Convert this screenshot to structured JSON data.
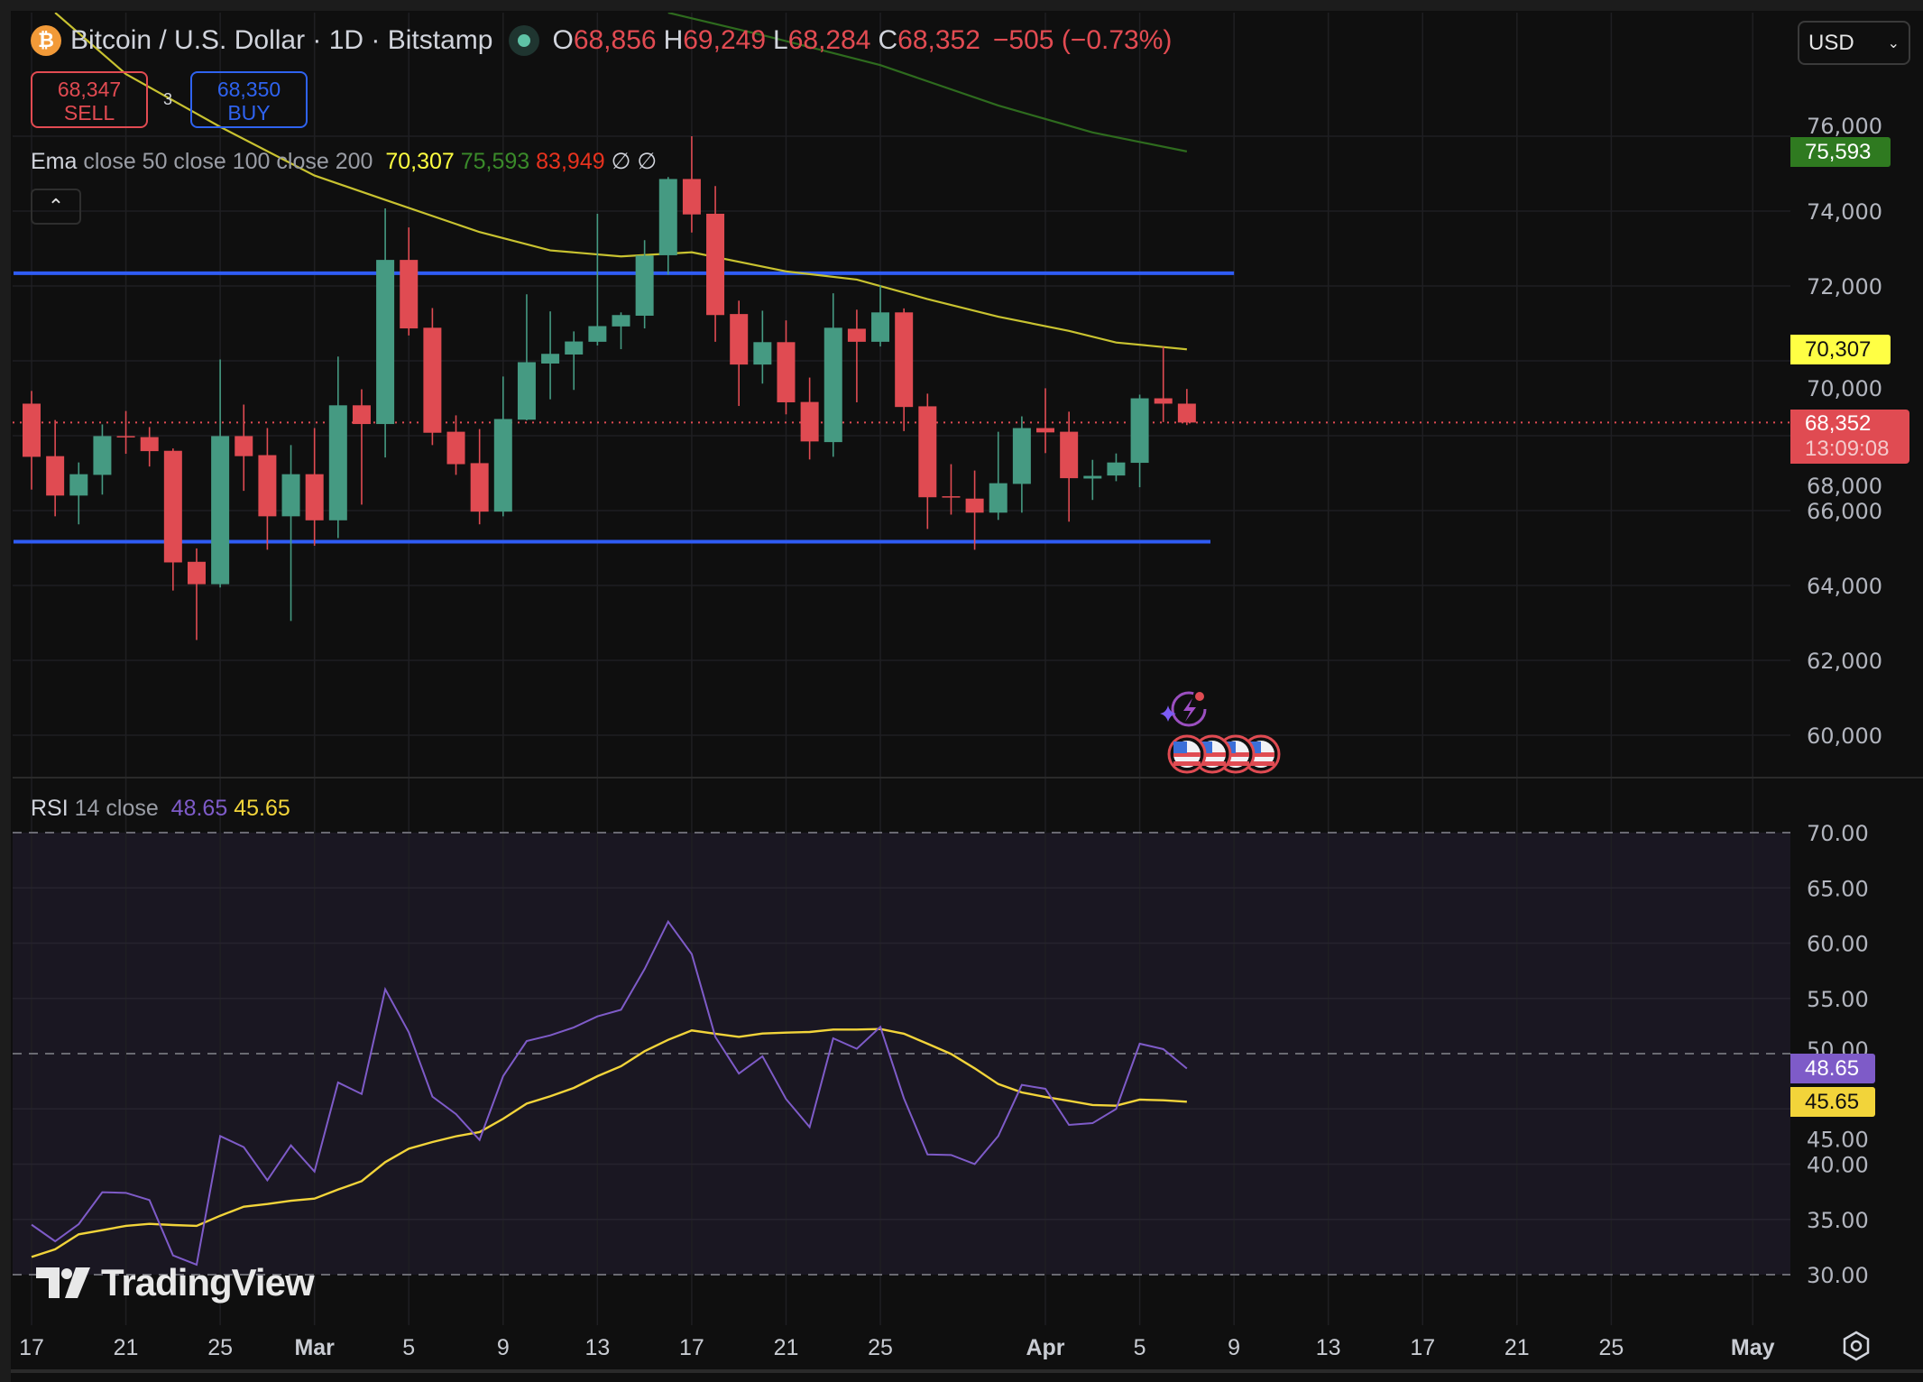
{
  "header": {
    "symbol_icon": "bitcoin-icon",
    "title": "Bitcoin / U.S. Dollar · 1D · Bitstamp",
    "market_status_icon": "market-open-dot-icon",
    "open_label": "O",
    "open": "68,856",
    "high_label": "H",
    "high": "69,249",
    "low_label": "L",
    "low": "68,284",
    "close_label": "C",
    "close": "68,352",
    "change": "−505 (−0.73%)"
  },
  "trade": {
    "sell_price": "68,347",
    "sell_label": "SELL",
    "spread": "3",
    "buy_price": "68,350",
    "buy_label": "BUY"
  },
  "ema_legend": {
    "name": "Ema",
    "params": "close 50 close 100 close 200",
    "v50": "70,307",
    "v100": "75,593",
    "v200": "83,949",
    "na1": "∅",
    "na2": "∅"
  },
  "rsi_legend": {
    "name": "RSI",
    "params": "14 close",
    "rsi": "48.65",
    "ma": "45.65"
  },
  "currency_select": {
    "value": "USD"
  },
  "colors": {
    "up": "#459a82",
    "down": "#e04b52",
    "ema50": "#c8c230",
    "ema100": "#2e6b1e",
    "ema200": "#e8321e",
    "level_lines": "#2f5cf5",
    "rsi": "#7e5bc8",
    "rsi_ma": "#f2d43a",
    "rsi_band": "#1a1722",
    "background": "#0f0f0f"
  },
  "price_tags": {
    "ema100": "75,593",
    "ema50": "70,307",
    "last": "68,352",
    "countdown": "13:09:08",
    "rsi": "48.65",
    "rsi_ma": "45.65"
  },
  "watermark": "TradingView",
  "chart_data": {
    "type": "candlestick",
    "price_axis": {
      "ylim": [
        58500,
        80000
      ],
      "ticks": [
        {
          "value": 76000,
          "label": "76,000"
        },
        {
          "value": 74000,
          "label": "74,000"
        },
        {
          "value": 72000,
          "label": "72,000"
        },
        {
          "value": 70000,
          "label": "70,000"
        },
        {
          "value": 68000,
          "label": "68,000"
        },
        {
          "value": 66000,
          "label": "66,000"
        },
        {
          "value": 64000,
          "label": "64,000"
        },
        {
          "value": 62000,
          "label": "62,000"
        },
        {
          "value": 60000,
          "label": "60,000"
        }
      ]
    },
    "time_axis": {
      "ticks": [
        {
          "date": "Feb 17",
          "label": "17"
        },
        {
          "date": "Feb 21",
          "label": "21"
        },
        {
          "date": "Feb 25",
          "label": "25"
        },
        {
          "date": "Mar 1",
          "label": "Mar"
        },
        {
          "date": "Mar 5",
          "label": "5"
        },
        {
          "date": "Mar 9",
          "label": "9"
        },
        {
          "date": "Mar 13",
          "label": "13"
        },
        {
          "date": "Mar 17",
          "label": "17"
        },
        {
          "date": "Mar 21",
          "label": "21"
        },
        {
          "date": "Mar 25",
          "label": "25"
        },
        {
          "date": "Apr 1",
          "label": "Apr"
        },
        {
          "date": "Apr 5",
          "label": "5"
        },
        {
          "date": "Apr 9",
          "label": "9"
        },
        {
          "date": "Apr 13",
          "label": "13"
        },
        {
          "date": "Apr 17",
          "label": "17"
        },
        {
          "date": "Apr 21",
          "label": "21"
        },
        {
          "date": "Apr 25",
          "label": "25"
        },
        {
          "date": "May 1",
          "label": "May"
        }
      ]
    },
    "candles": [
      {
        "date": "Feb 17",
        "o": 68856,
        "h": 69196,
        "l": 66561,
        "c": 67436
      },
      {
        "date": "Feb 18",
        "o": 67454,
        "h": 68419,
        "l": 65847,
        "c": 66401
      },
      {
        "date": "Feb 19",
        "o": 66401,
        "h": 67285,
        "l": 65633,
        "c": 66972
      },
      {
        "date": "Feb 20",
        "o": 66954,
        "h": 68303,
        "l": 66427,
        "c": 67990
      },
      {
        "date": "Feb 21",
        "o": 67990,
        "h": 68660,
        "l": 67517,
        "c": 67980
      },
      {
        "date": "Feb 22",
        "o": 67963,
        "h": 68231,
        "l": 67177,
        "c": 67588
      },
      {
        "date": "Feb 23",
        "o": 67597,
        "h": 67660,
        "l": 63864,
        "c": 64615
      },
      {
        "date": "Feb 24",
        "o": 64632,
        "h": 64990,
        "l": 62543,
        "c": 64034
      },
      {
        "date": "Feb 25",
        "o": 64034,
        "h": 70035,
        "l": 63945,
        "c": 67990
      },
      {
        "date": "Feb 26",
        "o": 67990,
        "h": 68830,
        "l": 66526,
        "c": 67454
      },
      {
        "date": "Feb 27",
        "o": 67481,
        "h": 68204,
        "l": 64954,
        "c": 65847
      },
      {
        "date": "Feb 28",
        "o": 65847,
        "h": 67749,
        "l": 63052,
        "c": 66972
      },
      {
        "date": "Mar 1",
        "o": 66972,
        "h": 68204,
        "l": 65061,
        "c": 65740
      },
      {
        "date": "Mar 2",
        "o": 65740,
        "h": 70115,
        "l": 65266,
        "c": 68812
      },
      {
        "date": "Mar 3",
        "o": 68812,
        "h": 69240,
        "l": 66159,
        "c": 68312
      },
      {
        "date": "Mar 4",
        "o": 68312,
        "h": 74071,
        "l": 67419,
        "c": 72696
      },
      {
        "date": "Mar 5",
        "o": 72696,
        "h": 73562,
        "l": 70678,
        "c": 70866
      },
      {
        "date": "Mar 6",
        "o": 70884,
        "h": 71410,
        "l": 67749,
        "c": 68079
      },
      {
        "date": "Mar 7",
        "o": 68106,
        "h": 68544,
        "l": 66954,
        "c": 67240
      },
      {
        "date": "Mar 8",
        "o": 67267,
        "h": 68178,
        "l": 65633,
        "c": 65972
      },
      {
        "date": "Mar 9",
        "o": 65972,
        "h": 69580,
        "l": 65847,
        "c": 68446
      },
      {
        "date": "Mar 10",
        "o": 68428,
        "h": 71776,
        "l": 68410,
        "c": 69964
      },
      {
        "date": "Mar 11",
        "o": 69928,
        "h": 71321,
        "l": 68972,
        "c": 70187
      },
      {
        "date": "Mar 12",
        "o": 70169,
        "h": 70785,
        "l": 69222,
        "c": 70517
      },
      {
        "date": "Mar 13",
        "o": 70509,
        "h": 73929,
        "l": 70410,
        "c": 70928
      },
      {
        "date": "Mar 14",
        "o": 70919,
        "h": 71294,
        "l": 70312,
        "c": 71223
      },
      {
        "date": "Mar 15",
        "o": 71205,
        "h": 73223,
        "l": 70866,
        "c": 72812
      },
      {
        "date": "Mar 16",
        "o": 72821,
        "h": 74911,
        "l": 72303,
        "c": 74857
      },
      {
        "date": "Mar 17",
        "o": 74857,
        "h": 76000,
        "l": 73428,
        "c": 73911
      },
      {
        "date": "Mar 18",
        "o": 73929,
        "h": 74670,
        "l": 70508,
        "c": 71223
      },
      {
        "date": "Mar 19",
        "o": 71250,
        "h": 71607,
        "l": 68794,
        "c": 69901
      },
      {
        "date": "Mar 20",
        "o": 69901,
        "h": 71339,
        "l": 69392,
        "c": 70499
      },
      {
        "date": "Mar 21",
        "o": 70499,
        "h": 71080,
        "l": 68571,
        "c": 68892
      },
      {
        "date": "Mar 22",
        "o": 68901,
        "h": 69553,
        "l": 67365,
        "c": 67847
      },
      {
        "date": "Mar 23",
        "o": 67829,
        "h": 71803,
        "l": 67436,
        "c": 70884
      },
      {
        "date": "Mar 24",
        "o": 70857,
        "h": 71366,
        "l": 68892,
        "c": 70509
      },
      {
        "date": "Mar 25",
        "o": 70509,
        "h": 72018,
        "l": 70383,
        "c": 71294
      },
      {
        "date": "Mar 26",
        "o": 71294,
        "h": 71401,
        "l": 68124,
        "c": 68767
      },
      {
        "date": "Mar 27",
        "o": 68785,
        "h": 69124,
        "l": 65508,
        "c": 66356
      },
      {
        "date": "Mar 28",
        "o": 66383,
        "h": 67240,
        "l": 65892,
        "c": 66374
      },
      {
        "date": "Mar 29",
        "o": 66320,
        "h": 67070,
        "l": 64954,
        "c": 65945
      },
      {
        "date": "Mar 30",
        "o": 65945,
        "h": 68106,
        "l": 65749,
        "c": 66731
      },
      {
        "date": "Mar 31",
        "o": 66713,
        "h": 68517,
        "l": 65945,
        "c": 68204
      },
      {
        "date": "Apr 1",
        "o": 68204,
        "h": 69267,
        "l": 67535,
        "c": 68088
      },
      {
        "date": "Apr 2",
        "o": 68106,
        "h": 68642,
        "l": 65704,
        "c": 66865
      },
      {
        "date": "Apr 3",
        "o": 66856,
        "h": 67356,
        "l": 66284,
        "c": 66927
      },
      {
        "date": "Apr 4",
        "o": 66937,
        "h": 67526,
        "l": 66785,
        "c": 67285
      },
      {
        "date": "Apr 5",
        "o": 67276,
        "h": 69097,
        "l": 66624,
        "c": 68999
      },
      {
        "date": "Apr 6",
        "o": 68999,
        "h": 70374,
        "l": 68365,
        "c": 68856
      },
      {
        "date": "Apr 7",
        "o": 68856,
        "h": 69249,
        "l": 68284,
        "c": 68352
      }
    ],
    "ema50": [
      [
        "Feb 18",
        79300
      ],
      [
        "Feb 21",
        77660
      ],
      [
        "Feb 25",
        76250
      ],
      [
        "Mar 1",
        74950
      ],
      [
        "Mar 4",
        74300
      ],
      [
        "Mar 8",
        73440
      ],
      [
        "Mar 11",
        72950
      ],
      [
        "Mar 14",
        72790
      ],
      [
        "Mar 17",
        72900
      ],
      [
        "Mar 21",
        72390
      ],
      [
        "Mar 24",
        72170
      ],
      [
        "Mar 27",
        71650
      ],
      [
        "Mar 30",
        71180
      ],
      [
        "Apr 2",
        70800
      ],
      [
        "Apr 4",
        70490
      ],
      [
        "Apr 7",
        70307
      ]
    ],
    "ema100": [
      [
        "Mar 16",
        79300
      ],
      [
        "Mar 20",
        78700
      ],
      [
        "Mar 25",
        77900
      ],
      [
        "Mar 30",
        76820
      ],
      [
        "Apr 3",
        76100
      ],
      [
        "Apr 7",
        75593
      ]
    ],
    "levels": [
      {
        "price": 72340,
        "end": "Apr 9"
      },
      {
        "price": 65170,
        "end": "Apr 8"
      }
    ],
    "last_price": 68352,
    "rsi_axis": {
      "ylim": [
        28,
        73
      ],
      "ticks": [
        {
          "value": 70,
          "label": "70.00"
        },
        {
          "value": 65,
          "label": "65.00"
        },
        {
          "value": 60,
          "label": "60.00"
        },
        {
          "value": 55,
          "label": "55.00"
        },
        {
          "value": 50,
          "label": "50.00"
        },
        {
          "value": 45,
          "label": "45.00"
        },
        {
          "value": 40,
          "label": "40.00"
        },
        {
          "value": 35,
          "label": "35.00"
        },
        {
          "value": 30,
          "label": "30.00"
        }
      ],
      "band": [
        30,
        70
      ],
      "dashed": [
        70,
        50,
        30
      ]
    },
    "rsi": [
      34.52,
      33.02,
      34.57,
      37.46,
      37.4,
      36.75,
      31.74,
      30.9,
      42.54,
      41.54,
      38.54,
      41.7,
      39.33,
      47.39,
      46.35,
      55.82,
      51.93,
      46.11,
      44.53,
      42.19,
      47.96,
      51.14,
      51.66,
      52.37,
      53.37,
      53.97,
      57.65,
      61.95,
      59.01,
      51.52,
      48.2,
      49.76,
      45.89,
      43.36,
      51.39,
      50.44,
      52.42,
      45.95,
      40.88,
      40.83,
      40.01,
      42.54,
      47.17,
      46.82,
      43.55,
      43.71,
      44.99,
      50.9,
      50.41,
      48.65
    ],
    "rsi_ma": [
      31.6,
      32.29,
      33.65,
      34.03,
      34.41,
      34.6,
      34.49,
      34.41,
      35.33,
      36.15,
      36.39,
      36.69,
      36.88,
      37.7,
      38.46,
      40.18,
      41.4,
      42.0,
      42.52,
      42.9,
      44.1,
      45.48,
      46.14,
      46.9,
      47.96,
      48.86,
      50.22,
      51.25,
      52.1,
      51.8,
      51.52,
      51.82,
      51.9,
      51.96,
      52.18,
      52.18,
      52.23,
      51.8,
      50.9,
      49.97,
      48.67,
      47.25,
      46.49,
      46.08,
      45.73,
      45.35,
      45.29,
      45.84,
      45.78,
      45.65
    ],
    "events": {
      "icons": [
        "ai-lightning-icon",
        "us-flag-event-icon",
        "us-flag-event-icon",
        "us-flag-event-icon",
        "us-flag-event-icon"
      ],
      "date": "Apr 7"
    }
  }
}
